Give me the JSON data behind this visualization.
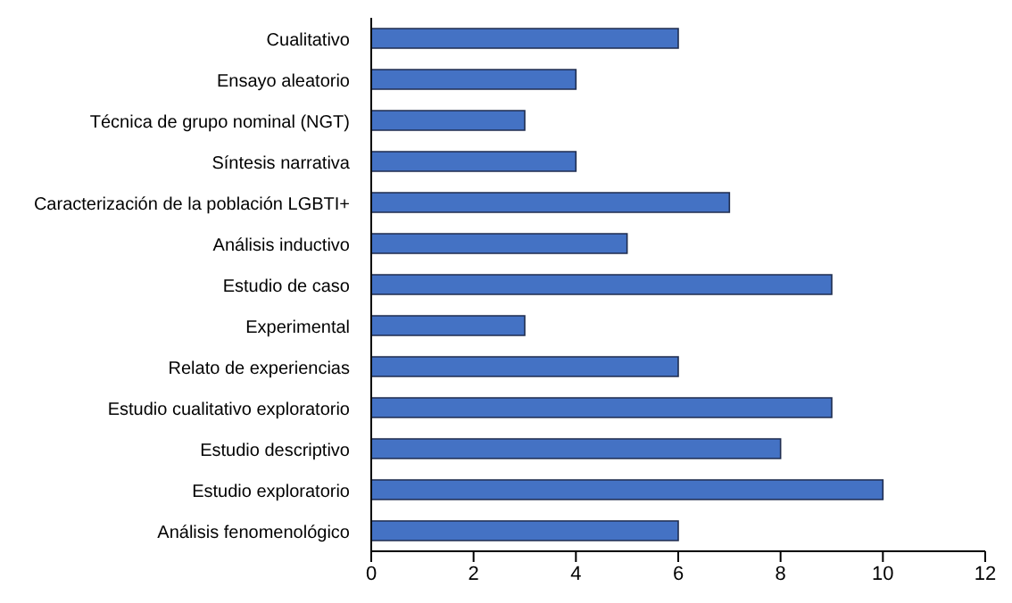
{
  "chart_data": {
    "type": "bar",
    "orientation": "horizontal",
    "categories": [
      "Cualitativo",
      "Ensayo aleatorio",
      "Técnica de grupo nominal (NGT)",
      "Síntesis narrativa",
      "Caracterización de la población LGBTI+",
      "Análisis inductivo",
      "Estudio de caso",
      "Experimental",
      "Relato de experiencias",
      "Estudio cualitativo exploratorio",
      "Estudio descriptivo",
      "Estudio exploratorio",
      "Análisis fenomenológico"
    ],
    "values": [
      6,
      4,
      3,
      4,
      7,
      5,
      9,
      3,
      6,
      9,
      8,
      10,
      6
    ],
    "color": "#4472c4",
    "xlim": [
      0,
      12
    ],
    "xticks": [
      0,
      2,
      4,
      6,
      8,
      10,
      12
    ],
    "grid": false
  }
}
